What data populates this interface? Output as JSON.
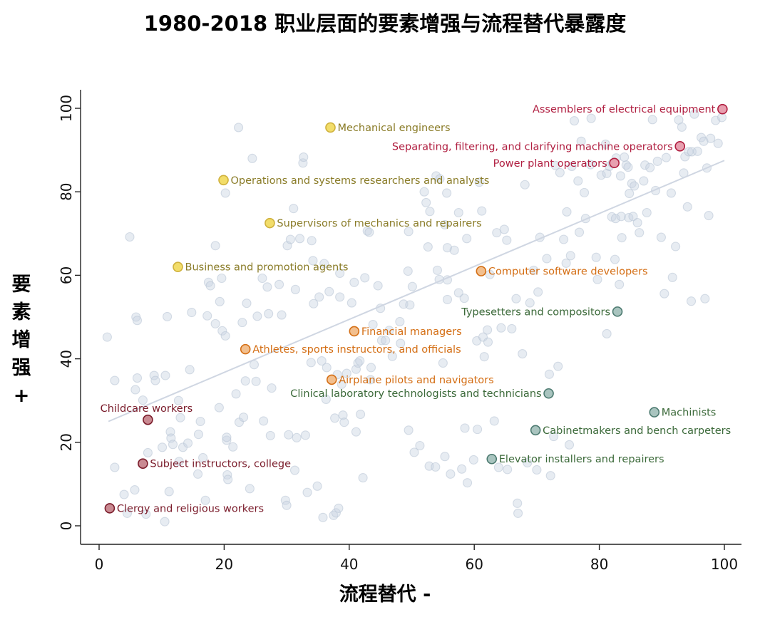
{
  "title": "1980-2018 职业层面的要素增强与流程替代暴露度",
  "chart_data": {
    "type": "scatter",
    "title": "1980-2018 职业层面的要素增强与流程替代暴露度",
    "xlabel": "流程替代 -",
    "ylabel_chars": [
      "要",
      "素",
      "增",
      "强",
      "+"
    ],
    "xlim": [
      0,
      100
    ],
    "ylim": [
      0,
      100
    ],
    "xticks": [
      "0",
      "20",
      "40",
      "60",
      "80",
      "100"
    ],
    "yticks": [
      "0",
      "20",
      "40",
      "60",
      "80",
      "100"
    ],
    "trendline": {
      "x": [
        1.5,
        100
      ],
      "y": [
        25,
        87.5
      ],
      "color": "#cfd6e2"
    },
    "colors": {
      "background_point": "#c9d4e2",
      "red": "#b01e40",
      "red_fill": "#e8a0b0",
      "yellow_text": "#8a7c28",
      "yellow_fill": "#f2dd6a",
      "yellow_stroke": "#cfb13c",
      "orange": "#d46e14",
      "orange_fill": "#f2bf8e",
      "green_text": "#3c6a3a",
      "green_fill": "#a9c4bf",
      "green_stroke": "#4c7a70",
      "darkred": "#7a1b2a",
      "darkred_fill": "#c98a92"
    },
    "highlighted": [
      {
        "label": "Assemblers of electrical equipment",
        "x": 99.7,
        "y": 99.8,
        "group": "red",
        "side": "left"
      },
      {
        "label": "Separating, filtering, and clarifying machine operators",
        "x": 92.9,
        "y": 90.9,
        "group": "red",
        "side": "left"
      },
      {
        "label": "Power plant operators",
        "x": 82.4,
        "y": 86.9,
        "group": "red",
        "side": "left"
      },
      {
        "label": "Mechanical engineers",
        "x": 37.0,
        "y": 95.4,
        "group": "yellow",
        "side": "right"
      },
      {
        "label": "Operations and systems researchers and analysts",
        "x": 19.9,
        "y": 82.8,
        "group": "yellow",
        "side": "right"
      },
      {
        "label": "Supervisors of mechanics and repairers",
        "x": 27.3,
        "y": 72.5,
        "group": "yellow",
        "side": "right"
      },
      {
        "label": "Business and promotion agents",
        "x": 12.6,
        "y": 62.0,
        "group": "yellow",
        "side": "right"
      },
      {
        "label": "Computer software developers",
        "x": 61.1,
        "y": 61.0,
        "group": "orange",
        "side": "right"
      },
      {
        "label": "Financial managers",
        "x": 40.8,
        "y": 46.6,
        "group": "orange",
        "side": "right"
      },
      {
        "label": "Athletes, sports instructors, and officials",
        "x": 23.4,
        "y": 42.3,
        "group": "orange",
        "side": "right"
      },
      {
        "label": "Airplane pilots and navigators",
        "x": 37.2,
        "y": 35.0,
        "group": "orange",
        "side": "right"
      },
      {
        "label": "Typesetters and compositors",
        "x": 82.9,
        "y": 51.3,
        "group": "green",
        "side": "left"
      },
      {
        "label": "Clinical laboratory technologists and technicians",
        "x": 71.9,
        "y": 31.7,
        "group": "green",
        "side": "left"
      },
      {
        "label": "Machinists",
        "x": 88.8,
        "y": 27.2,
        "group": "green",
        "side": "right"
      },
      {
        "label": "Cabinetmakers and bench carpeters",
        "x": 69.8,
        "y": 22.9,
        "group": "green",
        "side": "right"
      },
      {
        "label": "Elevator installers and repairers",
        "x": 62.8,
        "y": 16.0,
        "group": "green",
        "side": "right"
      },
      {
        "label": "Childcare workers",
        "x": 7.8,
        "y": 25.4,
        "group": "darkred",
        "side": "above"
      },
      {
        "label": "Subject instructors, college",
        "x": 7.0,
        "y": 14.9,
        "group": "darkred",
        "side": "right"
      },
      {
        "label": "Clergy and religious workers",
        "x": 1.7,
        "y": 4.2,
        "group": "darkred",
        "side": "right"
      }
    ],
    "background_points": [
      [
        1.3,
        45.2
      ],
      [
        2.5,
        34.8
      ],
      [
        2.5,
        14.0
      ],
      [
        4.0,
        7.5
      ],
      [
        4.5,
        3.0
      ],
      [
        4.9,
        69.2
      ],
      [
        5.7,
        8.6
      ],
      [
        5.8,
        32.6
      ],
      [
        5.9,
        50.0
      ],
      [
        6.1,
        35.4
      ],
      [
        6.1,
        49.2
      ],
      [
        7.0,
        30.1
      ],
      [
        7.5,
        2.8
      ],
      [
        7.8,
        17.5
      ],
      [
        8.8,
        36.0
      ],
      [
        9.0,
        34.8
      ],
      [
        10.1,
        18.8
      ],
      [
        10.5,
        1.0
      ],
      [
        10.6,
        36.0
      ],
      [
        10.9,
        50.1
      ],
      [
        11.2,
        8.2
      ],
      [
        11.4,
        22.5
      ],
      [
        11.5,
        21.0
      ],
      [
        11.8,
        19.5
      ],
      [
        12.7,
        30.0
      ],
      [
        12.8,
        15.4
      ],
      [
        13.0,
        25.9
      ],
      [
        13.4,
        18.8
      ],
      [
        14.2,
        19.8
      ],
      [
        14.5,
        37.4
      ],
      [
        14.8,
        51.1
      ],
      [
        15.8,
        12.4
      ],
      [
        15.9,
        21.9
      ],
      [
        16.2,
        25.0
      ],
      [
        16.6,
        16.3
      ],
      [
        17.0,
        6.1
      ],
      [
        17.3,
        50.3
      ],
      [
        17.5,
        58.3
      ],
      [
        17.8,
        57.5
      ],
      [
        18.6,
        48.4
      ],
      [
        18.6,
        67.1
      ],
      [
        19.2,
        28.3
      ],
      [
        19.3,
        53.7
      ],
      [
        19.6,
        59.3
      ],
      [
        19.7,
        46.7
      ],
      [
        20.2,
        79.7
      ],
      [
        20.2,
        45.5
      ],
      [
        20.4,
        20.5
      ],
      [
        20.4,
        21.2
      ],
      [
        20.5,
        12.2
      ],
      [
        20.6,
        11.1
      ],
      [
        21.4,
        18.9
      ],
      [
        21.9,
        31.6
      ],
      [
        22.3,
        95.4
      ],
      [
        22.4,
        24.8
      ],
      [
        22.9,
        48.7
      ],
      [
        23.1,
        26.0
      ],
      [
        23.4,
        34.7
      ],
      [
        23.6,
        53.3
      ],
      [
        24.1,
        8.9
      ],
      [
        24.5,
        88.0
      ],
      [
        24.8,
        38.6
      ],
      [
        25.1,
        34.6
      ],
      [
        25.3,
        50.2
      ],
      [
        26.1,
        59.3
      ],
      [
        26.3,
        25.1
      ],
      [
        26.9,
        57.2
      ],
      [
        27.1,
        50.8
      ],
      [
        27.4,
        21.6
      ],
      [
        27.6,
        33.0
      ],
      [
        28.8,
        57.8
      ],
      [
        29.2,
        50.5
      ],
      [
        29.8,
        6.1
      ],
      [
        30.0,
        4.9
      ],
      [
        30.1,
        67.1
      ],
      [
        30.3,
        21.8
      ],
      [
        30.6,
        68.6
      ],
      [
        31.1,
        76.0
      ],
      [
        31.3,
        13.3
      ],
      [
        31.4,
        56.6
      ],
      [
        31.6,
        21.1
      ],
      [
        32.1,
        68.8
      ],
      [
        32.6,
        86.9
      ],
      [
        32.7,
        88.3
      ],
      [
        33.0,
        21.7
      ],
      [
        33.3,
        8.0
      ],
      [
        33.9,
        39.1
      ],
      [
        34.0,
        68.3
      ],
      [
        34.2,
        63.5
      ],
      [
        34.3,
        53.2
      ],
      [
        34.9,
        9.5
      ],
      [
        35.2,
        54.8
      ],
      [
        35.6,
        39.5
      ],
      [
        35.8,
        2.0
      ],
      [
        36.0,
        62.8
      ],
      [
        36.3,
        30.3
      ],
      [
        36.4,
        37.9
      ],
      [
        36.8,
        56.1
      ],
      [
        37.5,
        2.5
      ],
      [
        37.7,
        25.8
      ],
      [
        37.9,
        3.1
      ],
      [
        38.1,
        36.2
      ],
      [
        38.3,
        4.2
      ],
      [
        38.5,
        60.5
      ],
      [
        38.5,
        54.8
      ],
      [
        38.8,
        33.9
      ],
      [
        39.0,
        26.5
      ],
      [
        39.2,
        24.8
      ],
      [
        39.6,
        36.5
      ],
      [
        40.4,
        53.4
      ],
      [
        40.8,
        58.3
      ],
      [
        41.1,
        37.5
      ],
      [
        41.1,
        22.5
      ],
      [
        41.4,
        39.0
      ],
      [
        41.7,
        39.5
      ],
      [
        41.8,
        26.7
      ],
      [
        42.2,
        11.5
      ],
      [
        42.5,
        59.4
      ],
      [
        42.9,
        70.6
      ],
      [
        43.2,
        70.3
      ],
      [
        43.4,
        35.0
      ],
      [
        43.5,
        37.9
      ],
      [
        43.8,
        48.2
      ],
      [
        44.6,
        57.5
      ],
      [
        45.0,
        52.1
      ],
      [
        45.2,
        44.4
      ],
      [
        45.8,
        44.4
      ],
      [
        46.4,
        46.8
      ],
      [
        46.9,
        40.6
      ],
      [
        48.1,
        48.9
      ],
      [
        48.2,
        43.7
      ],
      [
        48.7,
        53.1
      ],
      [
        49.4,
        61.0
      ],
      [
        49.5,
        22.9
      ],
      [
        49.5,
        70.5
      ],
      [
        49.7,
        52.9
      ],
      [
        50.1,
        57.3
      ],
      [
        50.4,
        17.6
      ],
      [
        51.3,
        19.2
      ],
      [
        52.0,
        80.0
      ],
      [
        52.3,
        77.4
      ],
      [
        52.6,
        66.8
      ],
      [
        52.8,
        14.3
      ],
      [
        52.9,
        75.3
      ],
      [
        53.8,
        14.1
      ],
      [
        53.9,
        83.8
      ],
      [
        54.1,
        61.2
      ],
      [
        54.4,
        59.0
      ],
      [
        54.5,
        83.1
      ],
      [
        55.0,
        39.0
      ],
      [
        55.3,
        16.6
      ],
      [
        55.3,
        72.1
      ],
      [
        55.6,
        79.7
      ],
      [
        55.7,
        58.9
      ],
      [
        55.7,
        54.2
      ],
      [
        55.7,
        66.6
      ],
      [
        56.2,
        12.4
      ],
      [
        56.8,
        66.0
      ],
      [
        57.5,
        75.0
      ],
      [
        57.5,
        55.8
      ],
      [
        58.0,
        13.6
      ],
      [
        58.4,
        54.5
      ],
      [
        58.5,
        23.4
      ],
      [
        58.8,
        68.8
      ],
      [
        58.9,
        10.3
      ],
      [
        59.9,
        15.8
      ],
      [
        60.4,
        44.3
      ],
      [
        60.5,
        23.1
      ],
      [
        60.8,
        82.3
      ],
      [
        61.2,
        75.4
      ],
      [
        61.4,
        45.2
      ],
      [
        61.6,
        40.5
      ],
      [
        62.1,
        46.9
      ],
      [
        62.2,
        44.0
      ],
      [
        62.5,
        60.2
      ],
      [
        63.2,
        25.1
      ],
      [
        63.6,
        70.2
      ],
      [
        63.9,
        14.0
      ],
      [
        64.3,
        47.4
      ],
      [
        64.8,
        71.0
      ],
      [
        65.2,
        68.4
      ],
      [
        65.3,
        13.5
      ],
      [
        66.0,
        47.2
      ],
      [
        66.7,
        54.4
      ],
      [
        66.9,
        5.4
      ],
      [
        67.0,
        3.0
      ],
      [
        67.7,
        41.2
      ],
      [
        68.1,
        81.7
      ],
      [
        68.5,
        15.1
      ],
      [
        68.9,
        53.4
      ],
      [
        69.5,
        61.2
      ],
      [
        70.0,
        13.4
      ],
      [
        70.2,
        56.0
      ],
      [
        70.5,
        69.1
      ],
      [
        71.6,
        64.0
      ],
      [
        72.0,
        36.3
      ],
      [
        72.2,
        12.0
      ],
      [
        72.7,
        21.4
      ],
      [
        73.0,
        86.3
      ],
      [
        73.4,
        38.2
      ],
      [
        73.7,
        84.6
      ],
      [
        74.3,
        68.6
      ],
      [
        74.7,
        62.9
      ],
      [
        74.8,
        75.2
      ],
      [
        75.2,
        19.4
      ],
      [
        75.4,
        64.7
      ],
      [
        75.6,
        86.1
      ],
      [
        76.0,
        97.0
      ],
      [
        76.6,
        82.6
      ],
      [
        76.8,
        70.3
      ],
      [
        77.1,
        92.1
      ],
      [
        77.6,
        79.8
      ],
      [
        77.8,
        73.6
      ],
      [
        78.6,
        86.5
      ],
      [
        78.7,
        97.6
      ],
      [
        79.5,
        64.3
      ],
      [
        79.7,
        59.0
      ],
      [
        80.3,
        84.0
      ],
      [
        81.0,
        91.4
      ],
      [
        81.2,
        46.0
      ],
      [
        81.2,
        84.4
      ],
      [
        81.6,
        86.1
      ],
      [
        82.0,
        74.0
      ],
      [
        82.1,
        86.8
      ],
      [
        82.5,
        63.8
      ],
      [
        82.6,
        73.6
      ],
      [
        82.7,
        88.1
      ],
      [
        83.2,
        57.8
      ],
      [
        83.4,
        83.8
      ],
      [
        83.5,
        74.1
      ],
      [
        83.6,
        69.0
      ],
      [
        84.0,
        88.3
      ],
      [
        84.3,
        86.4
      ],
      [
        84.6,
        85.9
      ],
      [
        84.7,
        73.8
      ],
      [
        84.8,
        79.6
      ],
      [
        85.2,
        82.0
      ],
      [
        85.4,
        74.1
      ],
      [
        85.6,
        81.4
      ],
      [
        86.1,
        72.6
      ],
      [
        86.4,
        70.2
      ],
      [
        87.1,
        82.6
      ],
      [
        87.3,
        86.4
      ],
      [
        87.6,
        75.0
      ],
      [
        88.1,
        85.8
      ],
      [
        88.5,
        97.3
      ],
      [
        89.0,
        80.3
      ],
      [
        89.3,
        87.3
      ],
      [
        89.9,
        69.1
      ],
      [
        90.4,
        55.6
      ],
      [
        90.7,
        88.2
      ],
      [
        91.5,
        79.7
      ],
      [
        91.7,
        59.5
      ],
      [
        92.2,
        66.9
      ],
      [
        92.7,
        97.2
      ],
      [
        93.2,
        95.5
      ],
      [
        93.5,
        84.5
      ],
      [
        93.7,
        88.4
      ],
      [
        94.1,
        76.4
      ],
      [
        94.3,
        89.6
      ],
      [
        94.7,
        53.8
      ],
      [
        94.8,
        89.6
      ],
      [
        95.2,
        98.6
      ],
      [
        95.7,
        89.7
      ],
      [
        96.3,
        93.0
      ],
      [
        96.7,
        92.1
      ],
      [
        96.9,
        54.4
      ],
      [
        97.2,
        85.7
      ],
      [
        97.5,
        74.3
      ],
      [
        97.8,
        92.8
      ],
      [
        98.6,
        97.1
      ],
      [
        99.0,
        91.6
      ],
      [
        99.6,
        97.8
      ]
    ]
  }
}
